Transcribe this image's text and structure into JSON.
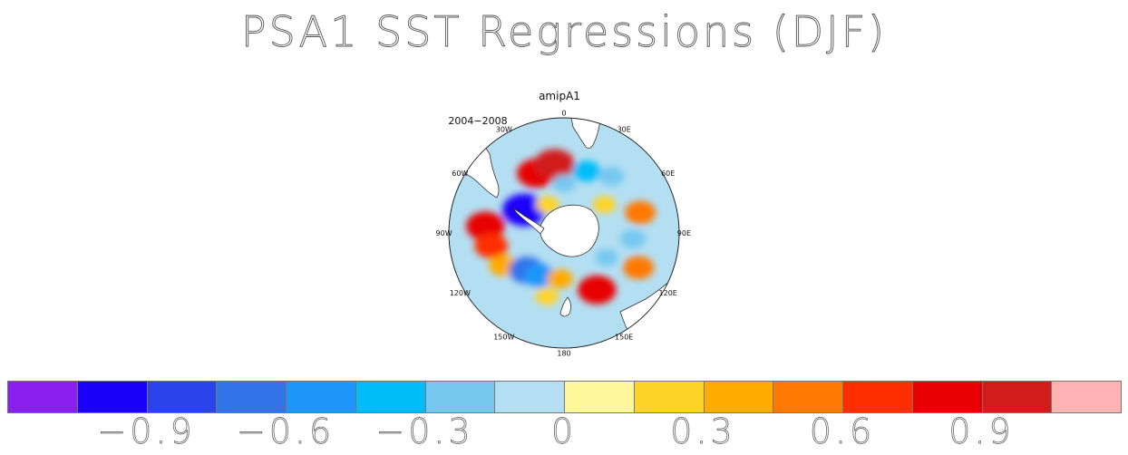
{
  "title": "PSA1 SST Regressions (DJF)",
  "panel": {
    "title": "amipA1",
    "period": "2004−2008",
    "longitude_labels": [
      {
        "text": "0",
        "lon": 0
      },
      {
        "text": "30E",
        "lon": 30
      },
      {
        "text": "60E",
        "lon": 60
      },
      {
        "text": "90E",
        "lon": 90
      },
      {
        "text": "120E",
        "lon": 120
      },
      {
        "text": "150E",
        "lon": 150
      },
      {
        "text": "180",
        "lon": 180
      },
      {
        "text": "150W",
        "lon": -150
      },
      {
        "text": "120W",
        "lon": -120
      },
      {
        "text": "90W",
        "lon": -90
      },
      {
        "text": "60W",
        "lon": -60
      },
      {
        "text": "30W",
        "lon": -30
      }
    ]
  },
  "colorbar": {
    "colors": [
      "#8a1ff0",
      "#1a00fa",
      "#2b44ea",
      "#3273ea",
      "#1c96f9",
      "#00bdf9",
      "#76c8f1",
      "#b4dff2",
      "#fff89a",
      "#ffd42a",
      "#ffab00",
      "#ff7800",
      "#ff2d00",
      "#e80000",
      "#d11c1c",
      "#ffb3b3"
    ],
    "labels": [
      "−0.9",
      "−0.6",
      "−0.3",
      "0",
      "0.3",
      "0.6",
      "0.9"
    ],
    "label_boundaries": [
      2,
      4,
      6,
      8,
      10,
      12,
      14
    ]
  },
  "map_features": {
    "anomalies": [
      {
        "lon": -25,
        "lat": -50,
        "value": 0.8
      },
      {
        "lon": -8,
        "lat": -48,
        "value": 0.9
      },
      {
        "lon": -60,
        "lat": -62,
        "value": -1.0
      },
      {
        "lon": -85,
        "lat": -42,
        "value": 0.8
      },
      {
        "lon": -100,
        "lat": -45,
        "value": 0.6
      },
      {
        "lon": -118,
        "lat": -48,
        "value": 0.4
      },
      {
        "lon": -135,
        "lat": -58,
        "value": -0.7
      },
      {
        "lon": -150,
        "lat": -60,
        "value": -0.5
      },
      {
        "lon": -165,
        "lat": -50,
        "value": 0.2
      },
      {
        "lon": 150,
        "lat": -50,
        "value": 0.8
      },
      {
        "lon": 115,
        "lat": -40,
        "value": 0.5
      },
      {
        "lon": 95,
        "lat": -48,
        "value": -0.3
      },
      {
        "lon": 75,
        "lat": -42,
        "value": 0.5
      },
      {
        "lon": 55,
        "lat": -60,
        "value": 0.2
      },
      {
        "lon": 20,
        "lat": -50,
        "value": -0.4
      },
      {
        "lon": 40,
        "lat": -45,
        "value": -0.3
      },
      {
        "lon": -30,
        "lat": -70,
        "value": 0.2
      },
      {
        "lon": 120,
        "lat": -60,
        "value": -0.2
      },
      {
        "lon": -175,
        "lat": -62,
        "value": 0.3
      },
      {
        "lon": 0,
        "lat": -60,
        "value": -0.2
      }
    ]
  }
}
